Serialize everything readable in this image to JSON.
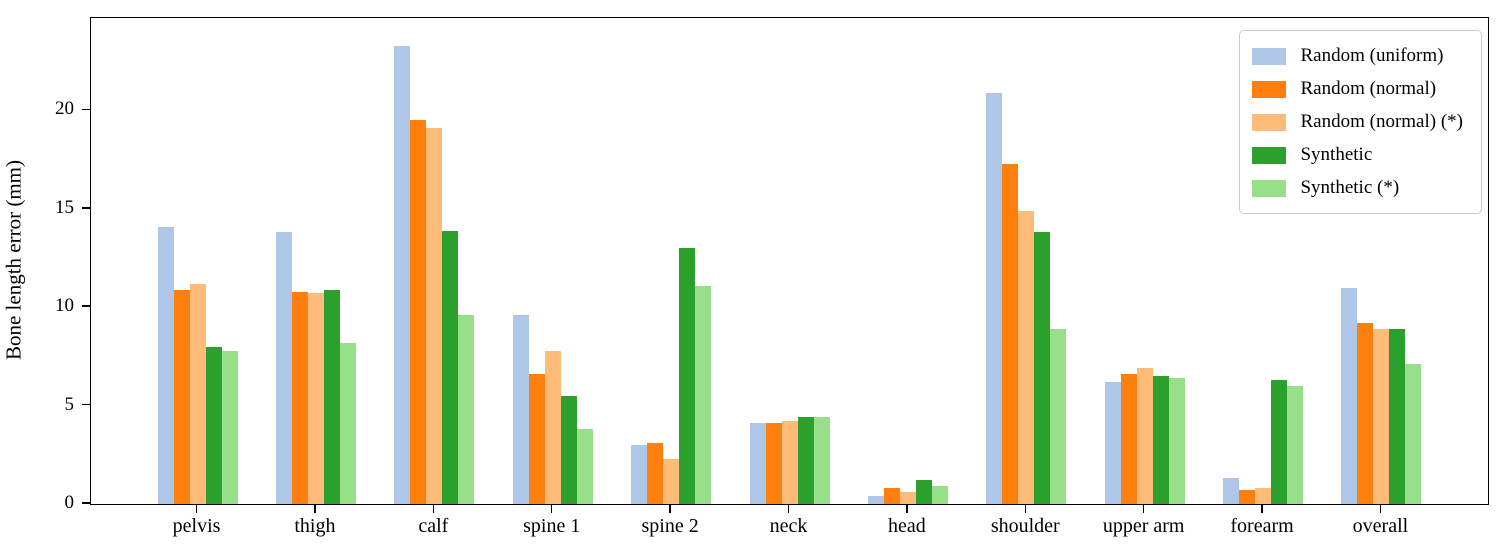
{
  "chart_data": {
    "type": "bar",
    "title": "",
    "xlabel": "",
    "ylabel": "Bone length error (mm)",
    "yticks": [
      0,
      5,
      10,
      15,
      20
    ],
    "ylim": [
      0,
      24.7
    ],
    "grid": false,
    "legend_position": "upper right",
    "categories": [
      "pelvis",
      "thigh",
      "calf",
      "spine 1",
      "spine 2",
      "neck",
      "head",
      "shoulder",
      "upper arm",
      "forearm",
      "overall"
    ],
    "series": [
      {
        "name": "Random (uniform)",
        "color": "#aec7e8",
        "values": [
          14.1,
          13.8,
          23.3,
          9.6,
          3.0,
          4.1,
          0.4,
          20.9,
          6.2,
          1.3,
          11.0
        ]
      },
      {
        "name": "Random (normal)",
        "color": "#ff7f0e",
        "values": [
          10.9,
          10.8,
          19.5,
          6.6,
          3.1,
          4.1,
          0.8,
          17.3,
          6.6,
          0.7,
          9.2
        ]
      },
      {
        "name": "Random (normal) (*)",
        "color": "#ffbb78",
        "values": [
          11.2,
          10.7,
          19.1,
          7.8,
          2.3,
          4.2,
          0.6,
          14.9,
          6.9,
          0.8,
          8.9
        ]
      },
      {
        "name": "Synthetic",
        "color": "#2ca02c",
        "values": [
          8.0,
          10.9,
          13.9,
          5.5,
          13.0,
          4.4,
          1.2,
          13.8,
          6.5,
          6.3,
          8.9
        ]
      },
      {
        "name": "Synthetic (*)",
        "color": "#98df8a",
        "values": [
          7.8,
          8.2,
          9.6,
          3.8,
          11.1,
          4.4,
          0.9,
          8.9,
          6.4,
          6.0,
          7.1
        ]
      }
    ],
    "axis_color": "#000000",
    "legend_border_color": "#cccccc",
    "background_color": "#ffffff"
  }
}
